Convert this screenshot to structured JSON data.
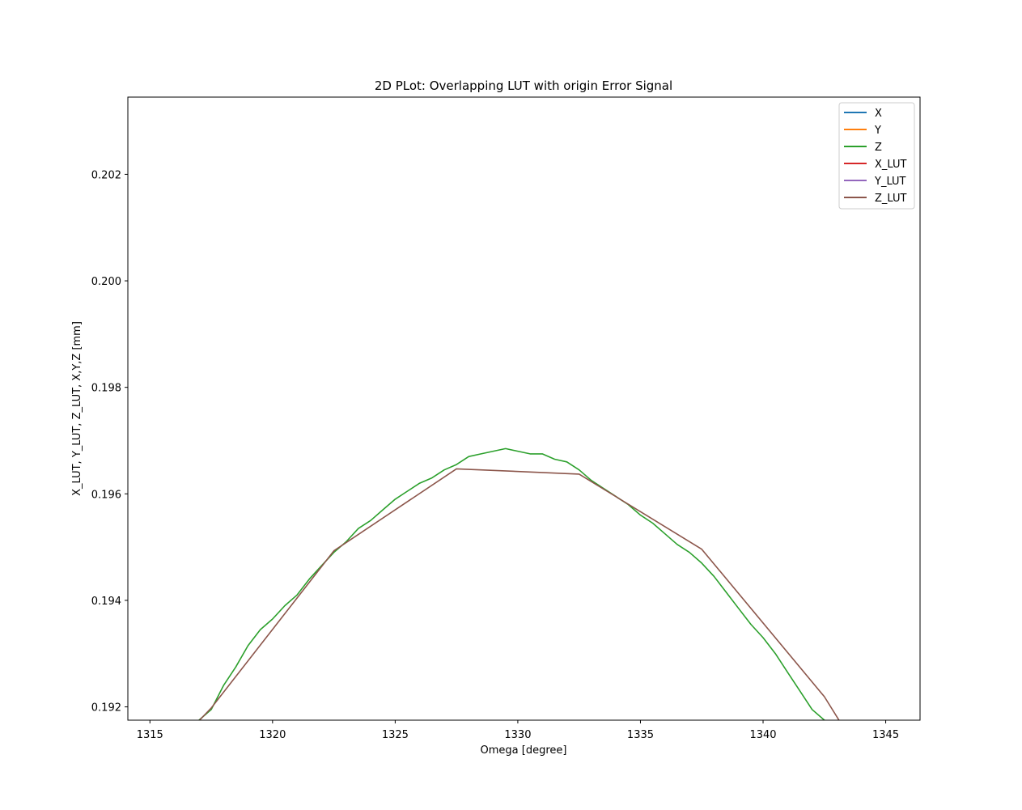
{
  "chart_data": {
    "type": "line",
    "title": "2D PLot: Overlapping LUT with origin Error Signal",
    "xlabel": "Omega [degree]",
    "ylabel": "X_LUT, Y_LUT, Z_LUT, X,Y,Z [mm]",
    "xlim": [
      1314.1,
      1346.4
    ],
    "ylim": [
      0.19175,
      0.20345
    ],
    "xticks": [
      "1315",
      "1320",
      "1325",
      "1330",
      "1335",
      "1340",
      "1345"
    ],
    "xtick_values": [
      1315,
      1320,
      1325,
      1330,
      1335,
      1340,
      1345
    ],
    "yticks": [
      "0.192",
      "0.194",
      "0.196",
      "0.198",
      "0.200",
      "0.202"
    ],
    "ytick_values": [
      0.192,
      0.194,
      0.196,
      0.198,
      0.2,
      0.202
    ],
    "grid": false,
    "legend_position": "top-right",
    "legend": [
      "X",
      "Y",
      "Z",
      "X_LUT",
      "Y_LUT",
      "Z_LUT"
    ],
    "series": [
      {
        "name": "X",
        "color": "#1f77b4",
        "x": [],
        "y": []
      },
      {
        "name": "Y",
        "color": "#ff7f0e",
        "x": [],
        "y": []
      },
      {
        "name": "Z",
        "color": "#2ca02c",
        "x": [
          1317.0,
          1317.5,
          1318.0,
          1318.5,
          1319.0,
          1319.5,
          1320.0,
          1320.5,
          1321.0,
          1321.5,
          1322.0,
          1322.5,
          1323.0,
          1323.5,
          1324.0,
          1324.5,
          1325.0,
          1325.5,
          1326.0,
          1326.5,
          1327.0,
          1327.5,
          1328.0,
          1328.5,
          1329.0,
          1329.5,
          1330.0,
          1330.5,
          1331.0,
          1331.5,
          1332.0,
          1332.5,
          1333.0,
          1333.5,
          1334.0,
          1334.5,
          1335.0,
          1335.5,
          1336.0,
          1336.5,
          1337.0,
          1337.5,
          1338.0,
          1338.5,
          1339.0,
          1339.5,
          1340.0,
          1340.5,
          1341.0,
          1341.5,
          1342.0,
          1342.5,
          1343.0,
          1343.2
        ],
        "y": [
          0.19175,
          0.19195,
          0.1924,
          0.19275,
          0.19315,
          0.19345,
          0.19365,
          0.1939,
          0.1941,
          0.1944,
          0.19465,
          0.1949,
          0.1951,
          0.19535,
          0.1955,
          0.1957,
          0.1959,
          0.19605,
          0.1962,
          0.1963,
          0.19645,
          0.19655,
          0.1967,
          0.19675,
          0.1968,
          0.19685,
          0.1968,
          0.19675,
          0.19675,
          0.19665,
          0.1966,
          0.19645,
          0.19625,
          0.1961,
          0.19595,
          0.1958,
          0.1956,
          0.19545,
          0.19525,
          0.19505,
          0.1949,
          0.1947,
          0.19445,
          0.19415,
          0.19385,
          0.19355,
          0.1933,
          0.193,
          0.19265,
          0.1923,
          0.19195,
          0.19175,
          0.1917,
          0.1917
        ]
      },
      {
        "name": "X_LUT",
        "color": "#d62728",
        "x": [],
        "y": []
      },
      {
        "name": "Y_LUT",
        "color": "#9467bd",
        "x": [],
        "y": []
      },
      {
        "name": "Z_LUT",
        "color": "#8c564b",
        "x": [
          1316.5,
          1317.5,
          1322.5,
          1327.5,
          1332.5,
          1337.5,
          1342.5,
          1343.3
        ],
        "y": [
          0.1915,
          0.19198,
          0.19493,
          0.19647,
          0.19637,
          0.19496,
          0.19219,
          0.1916
        ]
      }
    ]
  }
}
